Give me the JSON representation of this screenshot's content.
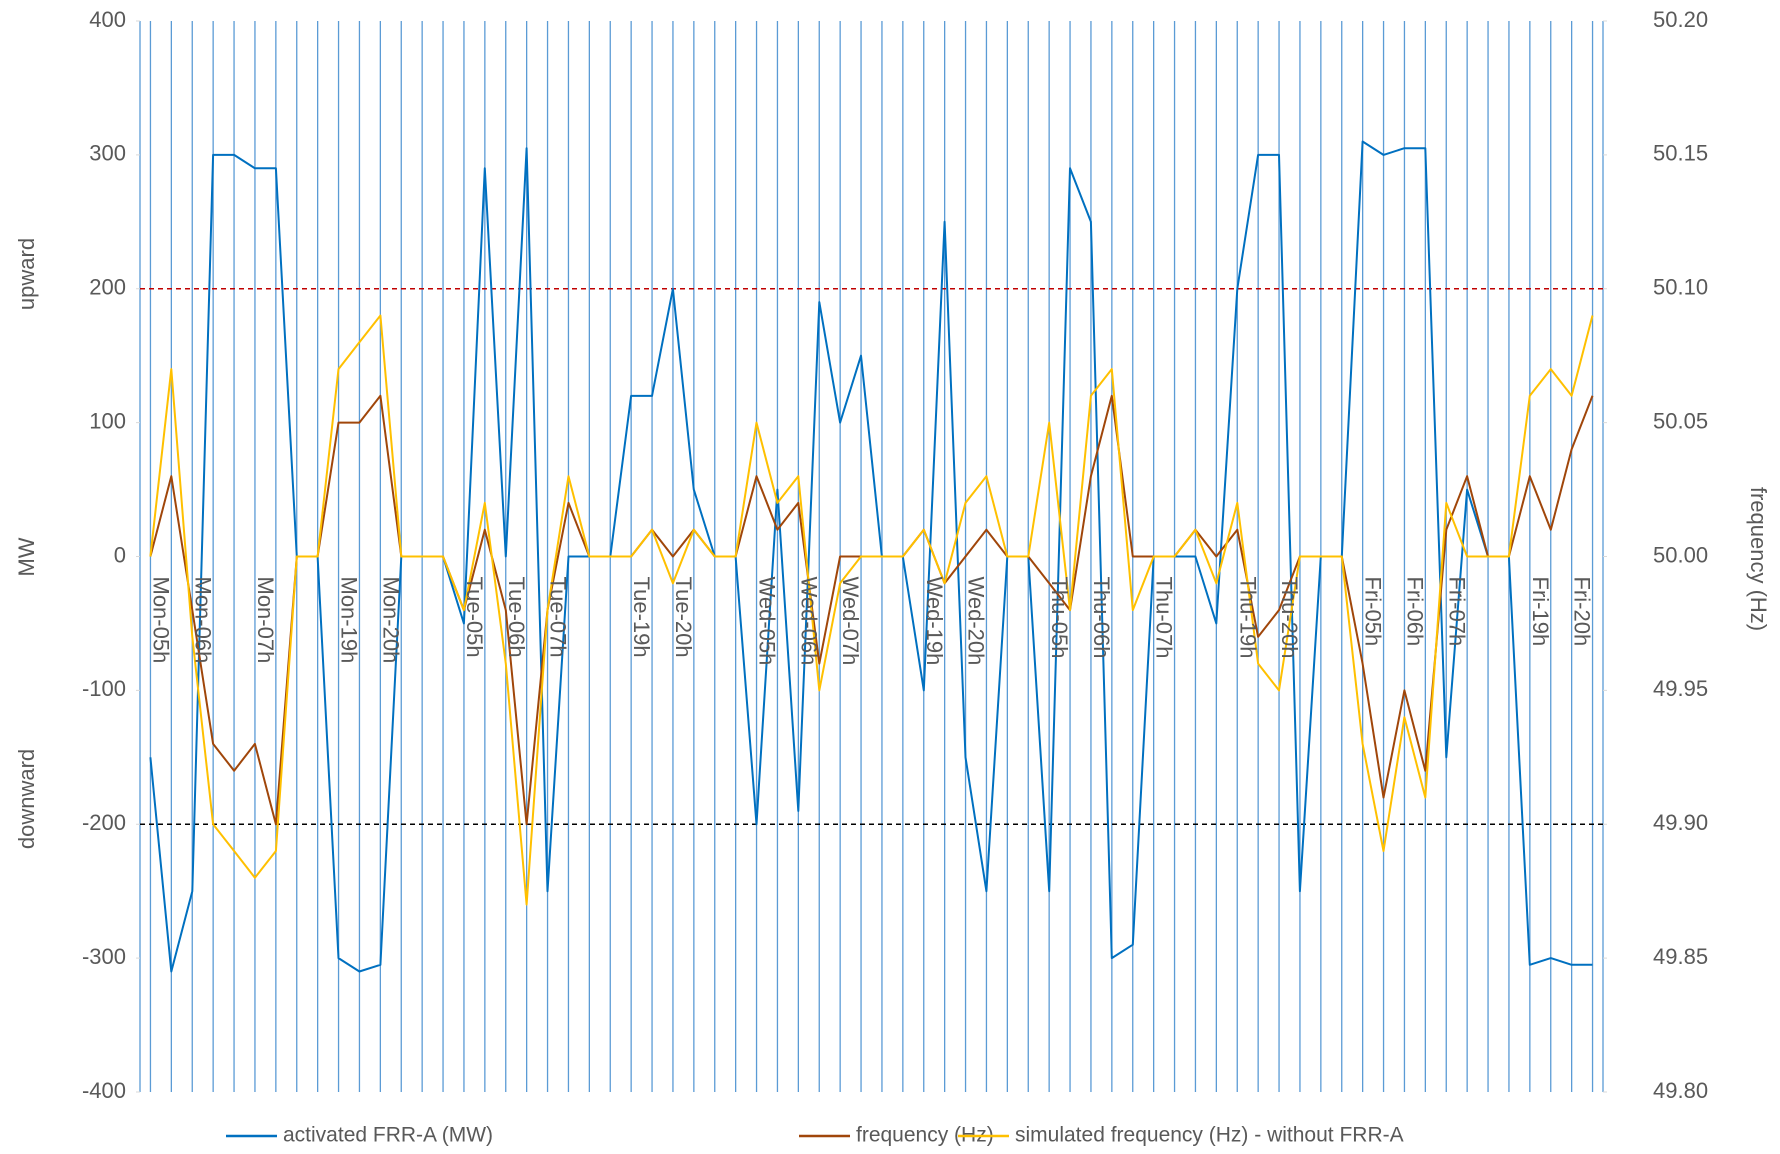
{
  "chart_data": {
    "type": "line",
    "categories": [
      null,
      "Mon-05h",
      null,
      "Mon-06h",
      null,
      null,
      "Mon-07h",
      null,
      null,
      null,
      "Mon-19h",
      null,
      "Mon-20h",
      null,
      null,
      null,
      "Tue-05h",
      null,
      "Tue-06h",
      null,
      "Tue-07h",
      null,
      null,
      null,
      "Tue-19h",
      null,
      "Tue-20h",
      null,
      null,
      null,
      "Wed-05h",
      null,
      "Wed-06h",
      null,
      "Wed-07h",
      null,
      null,
      null,
      "Wed-19h",
      null,
      "Wed-20h",
      null,
      null,
      null,
      "Thu-05h",
      null,
      "Thu-06h",
      null,
      null,
      "Thu-07h",
      null,
      null,
      null,
      "Thu-19h",
      null,
      "Thu-20h",
      null,
      null,
      null,
      "Fri-05h",
      null,
      "Fri-06h",
      null,
      "Fri-07h",
      null,
      null,
      null,
      "Fri-19h",
      null,
      "Fri-20h"
    ],
    "series": [
      {
        "name": "activated FRR-A (MW)",
        "color": "#0070c0",
        "axis": "y",
        "values": [
          -150,
          -310,
          -250,
          300,
          300,
          290,
          290,
          0,
          0,
          -300,
          -310,
          -305,
          0,
          0,
          0,
          -50,
          290,
          0,
          305,
          -250,
          0,
          0,
          0,
          120,
          120,
          200,
          50,
          0,
          0,
          -200,
          50,
          -190,
          190,
          100,
          150,
          0,
          0,
          -100,
          250,
          -150,
          -250,
          0,
          0,
          -250,
          290,
          250,
          -300,
          -290,
          0,
          0,
          0,
          -50,
          200,
          300,
          300,
          -250,
          0,
          0,
          310,
          300,
          305,
          305,
          -150,
          50,
          0,
          0,
          -305,
          -300,
          -305,
          -305
        ]
      },
      {
        "name": "frequency (Hz)",
        "color": "#a0460a",
        "axis": "y2",
        "values": [
          50.0,
          50.03,
          49.98,
          49.93,
          49.92,
          49.93,
          49.9,
          50.0,
          50.0,
          50.05,
          50.05,
          50.06,
          50.0,
          50.0,
          50.0,
          49.98,
          50.01,
          49.98,
          49.9,
          49.98,
          50.02,
          50.0,
          50.0,
          50.0,
          50.01,
          50.0,
          50.01,
          50.0,
          50.0,
          50.03,
          50.01,
          50.02,
          49.96,
          50.0,
          50.0,
          50.0,
          50.0,
          50.01,
          49.99,
          50.0,
          50.01,
          50.0,
          50.0,
          49.99,
          49.98,
          50.03,
          50.06,
          50.0,
          50.0,
          50.0,
          50.01,
          50.0,
          50.01,
          49.97,
          49.98,
          50.0,
          50.0,
          50.0,
          49.96,
          49.91,
          49.95,
          49.92,
          50.01,
          50.03,
          50.0,
          50.0,
          50.03,
          50.01,
          50.04,
          50.06
        ]
      },
      {
        "name": "simulated frequency (Hz) - without FRR-A",
        "color": "#ffc000",
        "axis": "y2",
        "values": [
          50.0,
          50.07,
          49.97,
          49.9,
          49.89,
          49.88,
          49.89,
          50.0,
          50.0,
          50.07,
          50.08,
          50.09,
          50.0,
          50.0,
          50.0,
          49.98,
          50.02,
          49.96,
          49.87,
          49.98,
          50.03,
          50.0,
          50.0,
          50.0,
          50.01,
          49.99,
          50.01,
          50.0,
          50.0,
          50.05,
          50.02,
          50.03,
          49.95,
          49.99,
          50.0,
          50.0,
          50.0,
          50.01,
          49.99,
          50.02,
          50.03,
          50.0,
          50.0,
          50.05,
          49.98,
          50.06,
          50.07,
          49.98,
          50.0,
          50.0,
          50.01,
          49.99,
          50.02,
          49.96,
          49.95,
          50.0,
          50.0,
          50.0,
          49.93,
          49.89,
          49.94,
          49.91,
          50.02,
          50.0,
          50.0,
          50.0,
          50.06,
          50.07,
          50.06,
          50.09
        ]
      }
    ],
    "ylabel": "MW",
    "ylabel_upper": "upward",
    "ylabel_lower": "downward",
    "y2label": "frequency (Hz)",
    "ylim": [
      -400,
      400
    ],
    "yticks": [
      -400,
      -300,
      -200,
      -100,
      0,
      100,
      200,
      300,
      400
    ],
    "y2lim": [
      49.8,
      50.2
    ],
    "y2ticks": [
      {
        "value": 49.8,
        "label": "49.80"
      },
      {
        "value": 49.85,
        "label": "49.85"
      },
      {
        "value": 49.9,
        "label": "49.90"
      },
      {
        "value": 49.95,
        "label": "49.95"
      },
      {
        "value": 50,
        "label": "50.00"
      },
      {
        "value": 50.05,
        "label": "50.05"
      },
      {
        "value": 50.1,
        "label": "50.10"
      },
      {
        "value": 50.15,
        "label": "50.15"
      },
      {
        "value": 50.2,
        "label": "50.20"
      }
    ],
    "reference_lines": [
      {
        "value": 200,
        "color": "#c00000"
      },
      {
        "value": -200,
        "color": "#000000"
      }
    ],
    "x_grid": true,
    "grid_color": "#5b9bd5",
    "legend": "bottom"
  }
}
